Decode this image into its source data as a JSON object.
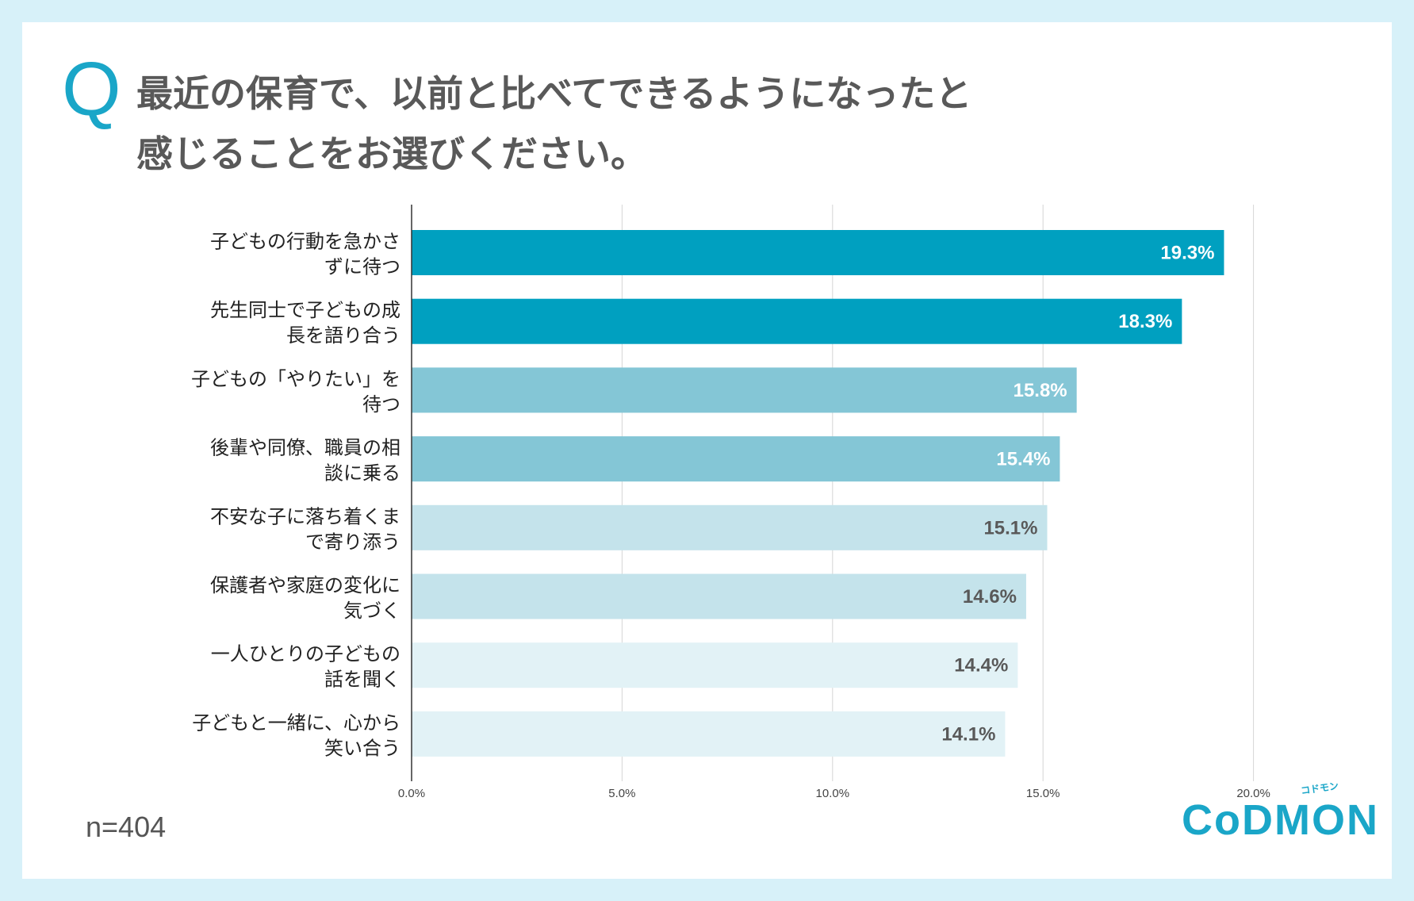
{
  "question": {
    "mark": "Q",
    "line1": "最近の保育で、以前と比べてできるようになったと",
    "line2": "感じることをお選びください。"
  },
  "sample_size": "n=404",
  "logo": {
    "text": "CoDMON",
    "sub": "コドモン"
  },
  "colors": {
    "background": "#d7f1f9",
    "bar_dark": "#00a0c0",
    "bar_mid": "#84c6d6",
    "bar_light": "#c4e3eb",
    "bar_lightest": "#e2f2f6",
    "label_white": "#ffffff",
    "label_gray": "#595959",
    "accent": "#1aa6c8"
  },
  "chart_data": {
    "type": "bar",
    "orientation": "horizontal",
    "categories": [
      [
        "子どもの行動を急かさ",
        "ずに待つ"
      ],
      [
        "先生同士で子どもの成",
        "長を語り合う"
      ],
      [
        "子どもの「やりたい」を",
        "待つ"
      ],
      [
        "後輩や同僚、職員の相",
        "談に乗る"
      ],
      [
        "不安な子に落ち着くま",
        "で寄り添う"
      ],
      [
        "保護者や家庭の変化に",
        "気づく"
      ],
      [
        "一人ひとりの子どもの",
        "話を聞く"
      ],
      [
        "子どもと一緒に、心から",
        "笑い合う"
      ]
    ],
    "values": [
      19.3,
      18.3,
      15.8,
      15.4,
      15.1,
      14.6,
      14.4,
      14.1
    ],
    "value_labels": [
      "19.3%",
      "18.3%",
      "15.8%",
      "15.4%",
      "15.1%",
      "14.6%",
      "14.4%",
      "14.1%"
    ],
    "bar_color_keys": [
      "bar_dark",
      "bar_dark",
      "bar_mid",
      "bar_mid",
      "bar_light",
      "bar_light",
      "bar_lightest",
      "bar_lightest"
    ],
    "label_color_keys": [
      "label_white",
      "label_white",
      "label_white",
      "label_white",
      "label_gray",
      "label_gray",
      "label_gray",
      "label_gray"
    ],
    "xlim": [
      0,
      20
    ],
    "ticks": [
      0,
      5,
      10,
      15,
      20
    ],
    "tick_labels": [
      "0.0%",
      "5.0%",
      "10.0%",
      "15.0%",
      "20.0%"
    ],
    "grid": true
  }
}
